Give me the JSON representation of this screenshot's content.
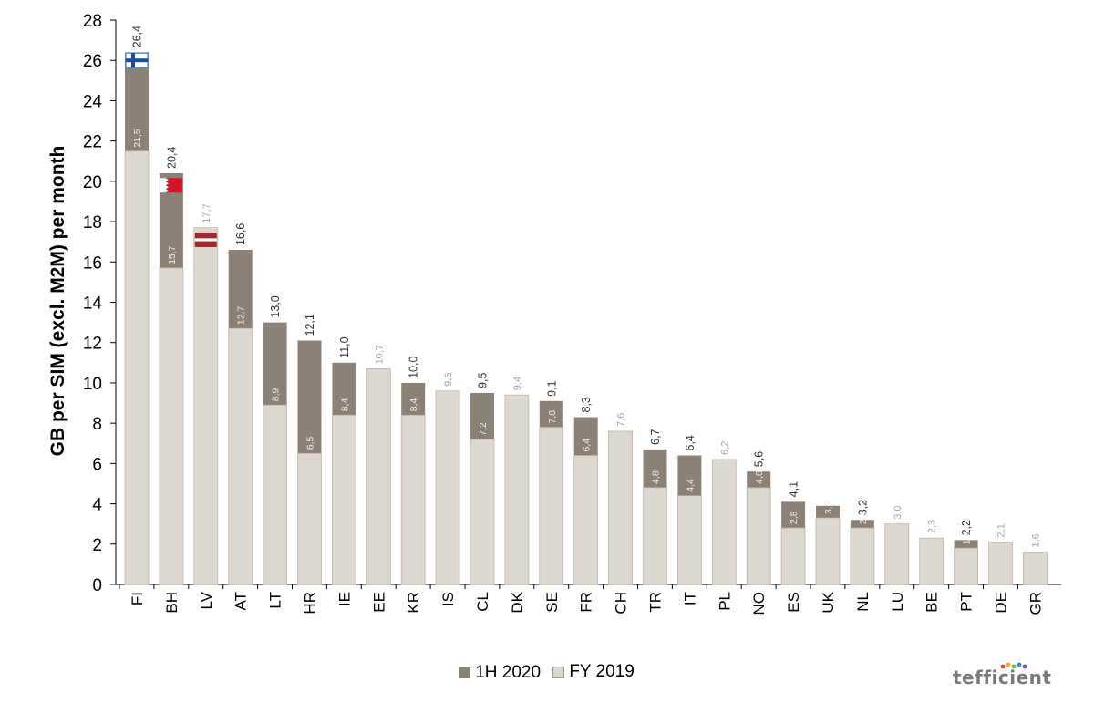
{
  "chart_data": {
    "type": "bar",
    "ylabel": "GB per SIM (excl. M2M) per month",
    "ylim": [
      0,
      28
    ],
    "yticks": [
      0,
      2,
      4,
      6,
      8,
      10,
      12,
      14,
      16,
      18,
      20,
      22,
      24,
      26,
      28
    ],
    "grid": false,
    "legend_position": "bottom",
    "categories": [
      "FI",
      "BH",
      "LV",
      "AT",
      "LT",
      "HR",
      "IE",
      "EE",
      "KR",
      "IS",
      "CL",
      "DK",
      "SE",
      "FR",
      "CH",
      "TR",
      "IT",
      "PL",
      "NO",
      "ES",
      "UK",
      "NL",
      "LU",
      "BE",
      "PT",
      "DE",
      "GR"
    ],
    "series": [
      {
        "name": "1H 2020",
        "color": "#8c8176",
        "values": [
          26.4,
          20.4,
          null,
          16.6,
          13.0,
          12.1,
          11.0,
          null,
          10.0,
          null,
          9.5,
          null,
          9.1,
          8.3,
          null,
          6.7,
          6.4,
          null,
          5.6,
          4.1,
          3.9,
          3.2,
          null,
          null,
          2.2,
          null,
          null
        ],
        "labels": [
          "26,4",
          "20,4",
          "",
          "16,6",
          "13,0",
          "12,1",
          "11,0",
          "",
          "10,0",
          "",
          "9,5",
          "",
          "9,1",
          "8,3",
          "",
          "6,7",
          "6,4",
          "",
          "5,6",
          "4,1",
          "",
          "3,2",
          "",
          "",
          "2,2",
          "",
          ""
        ]
      },
      {
        "name": "FY 2019",
        "color": "#ddd8cf",
        "values": [
          21.5,
          15.7,
          17.7,
          12.7,
          8.9,
          6.5,
          8.4,
          10.7,
          8.4,
          9.6,
          7.2,
          9.4,
          7.8,
          6.4,
          7.6,
          4.8,
          4.4,
          6.2,
          4.8,
          2.8,
          3.3,
          2.8,
          3.0,
          2.3,
          1.8,
          2.1,
          1.6
        ],
        "labels": [
          "21,5",
          "15,7",
          "17,7",
          "12,7",
          "8,9",
          "6,5",
          "8,4",
          "10,7",
          "8,4",
          "9,6",
          "7,2",
          "9,4",
          "7,8",
          "6,4",
          "7,6",
          "4,8",
          "4,4",
          "6,2",
          "4,8",
          "2,8",
          "3,3",
          "2,8",
          "3,0",
          "2,3",
          "1,8",
          "2,1",
          "1,6"
        ]
      }
    ],
    "flags": [
      {
        "category": "FI",
        "name": "finland-flag-icon",
        "value": 26.0
      },
      {
        "category": "BH",
        "name": "bahrain-flag-icon",
        "value": 19.8
      },
      {
        "category": "LV",
        "name": "latvia-flag-icon",
        "value": 17.1
      }
    ]
  },
  "legend": {
    "h1": "1H 2020",
    "fy": "FY 2019"
  },
  "brand": {
    "name": "tefficient",
    "dot_colors": [
      "#e5442f",
      "#f7a823",
      "#66b84a",
      "#2d8fcf",
      "#8a4a9b"
    ]
  }
}
